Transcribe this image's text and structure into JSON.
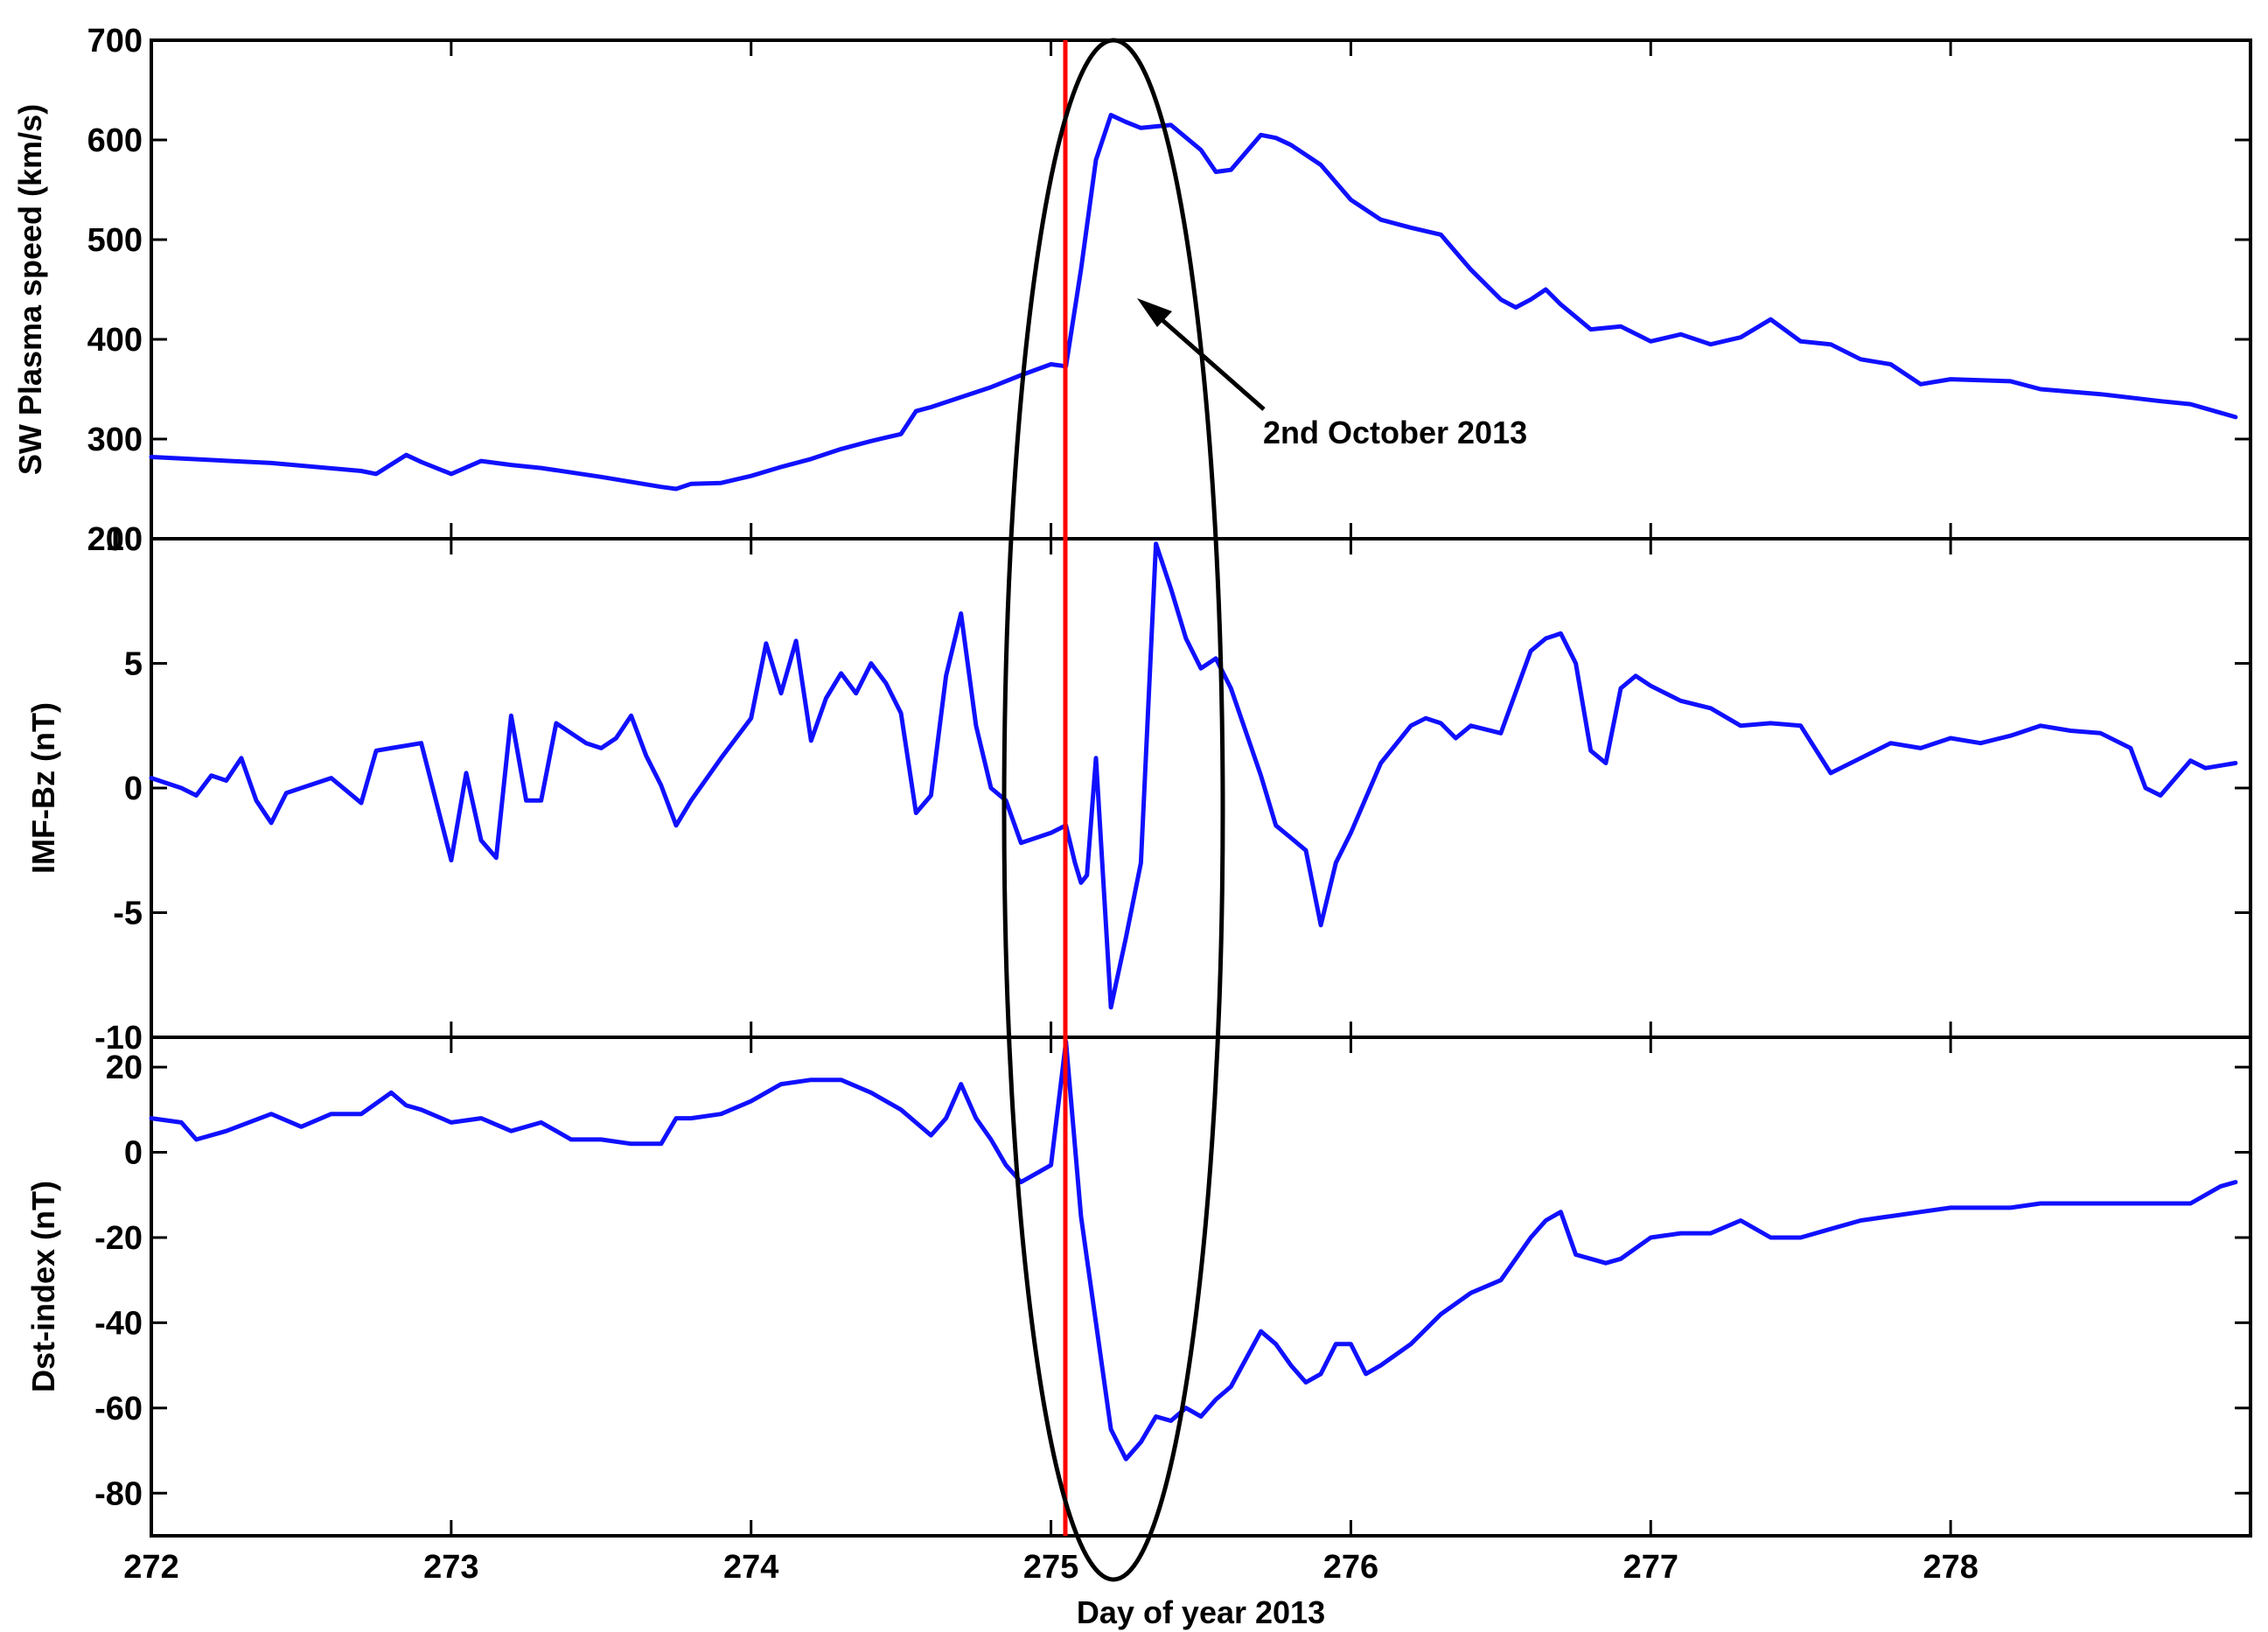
{
  "colors": {
    "series": "#1010ff",
    "event_line": "#ff0000",
    "ellipse": "#000000",
    "axes": "#000000"
  },
  "chart_data": [
    {
      "type": "line",
      "panel": "top",
      "ylabel": "SW Plasma speed (km/s)",
      "ylim": [
        200,
        700
      ],
      "yticks": [
        700,
        600,
        500,
        400,
        300,
        200
      ],
      "ytick_labels": [
        "700",
        "600",
        "500",
        "400",
        "300",
        "200"
      ],
      "xlim": [
        272,
        279
      ],
      "series": [
        {
          "x": [
            272.0,
            272.4,
            272.7,
            272.75,
            272.85,
            272.9,
            273.0,
            273.1,
            273.2,
            273.3,
            273.5,
            273.7,
            273.75,
            273.8,
            273.9,
            274.0,
            274.1,
            274.2,
            274.3,
            274.4,
            274.5,
            274.55,
            274.6,
            274.7,
            274.8,
            274.9,
            275.0,
            275.05,
            275.1,
            275.15,
            275.2,
            275.25,
            275.3,
            275.4,
            275.5,
            275.55,
            275.6,
            275.7,
            275.75,
            275.8,
            275.9,
            276.0,
            276.1,
            276.2,
            276.3,
            276.4,
            276.5,
            276.55,
            276.6,
            276.65,
            276.7,
            276.8,
            276.9,
            277.0,
            277.1,
            277.2,
            277.3,
            277.4,
            277.5,
            277.6,
            277.7,
            277.8,
            277.9,
            278.0,
            278.2,
            278.3,
            278.5,
            278.7,
            278.8,
            278.95
          ],
          "y": [
            282,
            276,
            268,
            265,
            284,
            277,
            265,
            278,
            274,
            271,
            262,
            252,
            250,
            255,
            256,
            263,
            272,
            280,
            290,
            298,
            305,
            328,
            332,
            342,
            352,
            364,
            375,
            373,
            470,
            580,
            625,
            618,
            612,
            615,
            590,
            568,
            570,
            605,
            602,
            595,
            575,
            540,
            520,
            512,
            505,
            470,
            440,
            432,
            440,
            450,
            435,
            410,
            413,
            398,
            405,
            395,
            402,
            420,
            398,
            395,
            380,
            375,
            355,
            360,
            358,
            350,
            345,
            338,
            335,
            322
          ]
        }
      ]
    },
    {
      "type": "line",
      "panel": "middle",
      "ylabel": "IMF-Bz (nT)",
      "ylim": [
        -10,
        10
      ],
      "yticks": [
        10,
        5,
        0,
        -5,
        -10
      ],
      "ytick_labels": [
        "10",
        "5",
        "0",
        "-5",
        "-10"
      ],
      "xlim": [
        272,
        279
      ],
      "series": [
        {
          "x": [
            272.0,
            272.1,
            272.15,
            272.2,
            272.25,
            272.3,
            272.35,
            272.4,
            272.45,
            272.5,
            272.6,
            272.7,
            272.75,
            272.8,
            272.9,
            273.0,
            273.05,
            273.1,
            273.15,
            273.2,
            273.25,
            273.3,
            273.35,
            273.4,
            273.45,
            273.5,
            273.55,
            273.6,
            273.65,
            273.7,
            273.75,
            273.8,
            273.9,
            274.0,
            274.05,
            274.1,
            274.15,
            274.2,
            274.25,
            274.3,
            274.35,
            274.4,
            274.45,
            274.5,
            274.55,
            274.6,
            274.65,
            274.7,
            274.75,
            274.8,
            274.85,
            274.9,
            275.0,
            275.05,
            275.08,
            275.1,
            275.12,
            275.15,
            275.2,
            275.25,
            275.3,
            275.35,
            275.4,
            275.45,
            275.5,
            275.55,
            275.6,
            275.7,
            275.75,
            275.8,
            275.85,
            275.9,
            275.95,
            276.0,
            276.1,
            276.2,
            276.25,
            276.3,
            276.35,
            276.4,
            276.5,
            276.6,
            276.65,
            276.7,
            276.75,
            276.8,
            276.85,
            276.9,
            276.95,
            277.0,
            277.1,
            277.2,
            277.3,
            277.4,
            277.5,
            277.6,
            277.7,
            277.8,
            277.9,
            278.0,
            278.1,
            278.2,
            278.3,
            278.4,
            278.5,
            278.6,
            278.65,
            278.7,
            278.8,
            278.85,
            278.95
          ],
          "y": [
            0.4,
            0.0,
            -0.3,
            0.5,
            0.3,
            1.2,
            -0.5,
            -1.4,
            -0.2,
            0.0,
            0.4,
            -0.6,
            1.5,
            1.6,
            1.8,
            -2.9,
            0.6,
            -2.1,
            -2.8,
            2.9,
            -0.5,
            -0.5,
            2.6,
            2.2,
            1.8,
            1.6,
            2.0,
            2.9,
            1.3,
            0.1,
            -1.5,
            -0.5,
            1.2,
            2.8,
            5.8,
            3.8,
            5.9,
            1.9,
            3.6,
            4.6,
            3.8,
            5.0,
            4.2,
            3.0,
            -1.0,
            -0.3,
            4.5,
            7.0,
            2.5,
            0.0,
            -0.5,
            -2.2,
            -1.8,
            -1.5,
            -3.0,
            -3.8,
            -3.5,
            1.2,
            -8.8,
            -6.0,
            -3.0,
            9.8,
            8.0,
            6.0,
            4.8,
            5.2,
            4.0,
            0.5,
            -1.5,
            -2.0,
            -2.5,
            -5.5,
            -3.0,
            -1.8,
            1.0,
            2.5,
            2.8,
            2.6,
            2.0,
            2.5,
            2.2,
            5.5,
            6.0,
            6.2,
            5.0,
            1.5,
            1.0,
            4.0,
            4.5,
            4.1,
            3.5,
            3.2,
            2.5,
            2.6,
            2.5,
            0.6,
            1.2,
            1.8,
            1.6,
            2.0,
            1.8,
            2.1,
            2.5,
            2.3,
            2.2,
            1.6,
            0.0,
            -0.3,
            1.1,
            0.8,
            1.0
          ]
        }
      ]
    },
    {
      "type": "line",
      "panel": "bottom",
      "xlabel": "Day of year 2013",
      "ylabel": "Dst-index (nT)",
      "ylim": [
        -90,
        27
      ],
      "yticks": [
        20,
        0,
        -20,
        -40,
        -60,
        -80
      ],
      "ytick_labels": [
        "20",
        "0",
        "-20",
        "-40",
        "-60",
        "-80"
      ],
      "xlim": [
        272,
        279
      ],
      "xticks": [
        272,
        273,
        274,
        275,
        276,
        277,
        278
      ],
      "xtick_labels": [
        "272",
        "273",
        "274",
        "275",
        "276",
        "277",
        "278"
      ],
      "series": [
        {
          "x": [
            272.0,
            272.1,
            272.15,
            272.25,
            272.4,
            272.5,
            272.6,
            272.7,
            272.8,
            272.85,
            272.9,
            273.0,
            273.1,
            273.2,
            273.3,
            273.4,
            273.5,
            273.6,
            273.7,
            273.75,
            273.8,
            273.9,
            274.0,
            274.1,
            274.2,
            274.3,
            274.4,
            274.5,
            274.6,
            274.65,
            274.7,
            274.75,
            274.8,
            274.85,
            274.9,
            274.95,
            275.0,
            275.05,
            275.1,
            275.12,
            275.15,
            275.2,
            275.25,
            275.3,
            275.35,
            275.4,
            275.45,
            275.5,
            275.55,
            275.6,
            275.7,
            275.75,
            275.8,
            275.85,
            275.9,
            275.95,
            276.0,
            276.05,
            276.1,
            276.2,
            276.3,
            276.4,
            276.5,
            276.6,
            276.65,
            276.7,
            276.75,
            276.8,
            276.85,
            276.9,
            277.0,
            277.1,
            277.2,
            277.3,
            277.4,
            277.5,
            277.6,
            277.7,
            277.8,
            277.9,
            278.0,
            278.2,
            278.3,
            278.5,
            278.7,
            278.8,
            278.9,
            278.95
          ],
          "y": [
            8,
            7,
            3,
            5,
            9,
            6,
            9,
            9,
            14,
            11,
            10,
            7,
            8,
            5,
            7,
            3,
            3,
            2,
            2,
            8,
            8,
            9,
            12,
            16,
            17,
            17,
            14,
            10,
            4,
            8,
            16,
            8,
            3,
            -3,
            -7,
            -5,
            -3,
            26,
            -15,
            -25,
            -40,
            -65,
            -72,
            -68,
            -62,
            -63,
            -60,
            -62,
            -58,
            -55,
            -42,
            -45,
            -50,
            -54,
            -52,
            -45,
            -45,
            -52,
            -50,
            -45,
            -38,
            -33,
            -30,
            -20,
            -16,
            -14,
            -24,
            -25,
            -26,
            -25,
            -20,
            -19,
            -19,
            -16,
            -20,
            -20,
            -18,
            -16,
            -15,
            -14,
            -13,
            -13,
            -12,
            -12,
            -12,
            -12,
            -8,
            -7
          ]
        }
      ]
    }
  ],
  "annotation": {
    "text": "2nd October 2013"
  }
}
